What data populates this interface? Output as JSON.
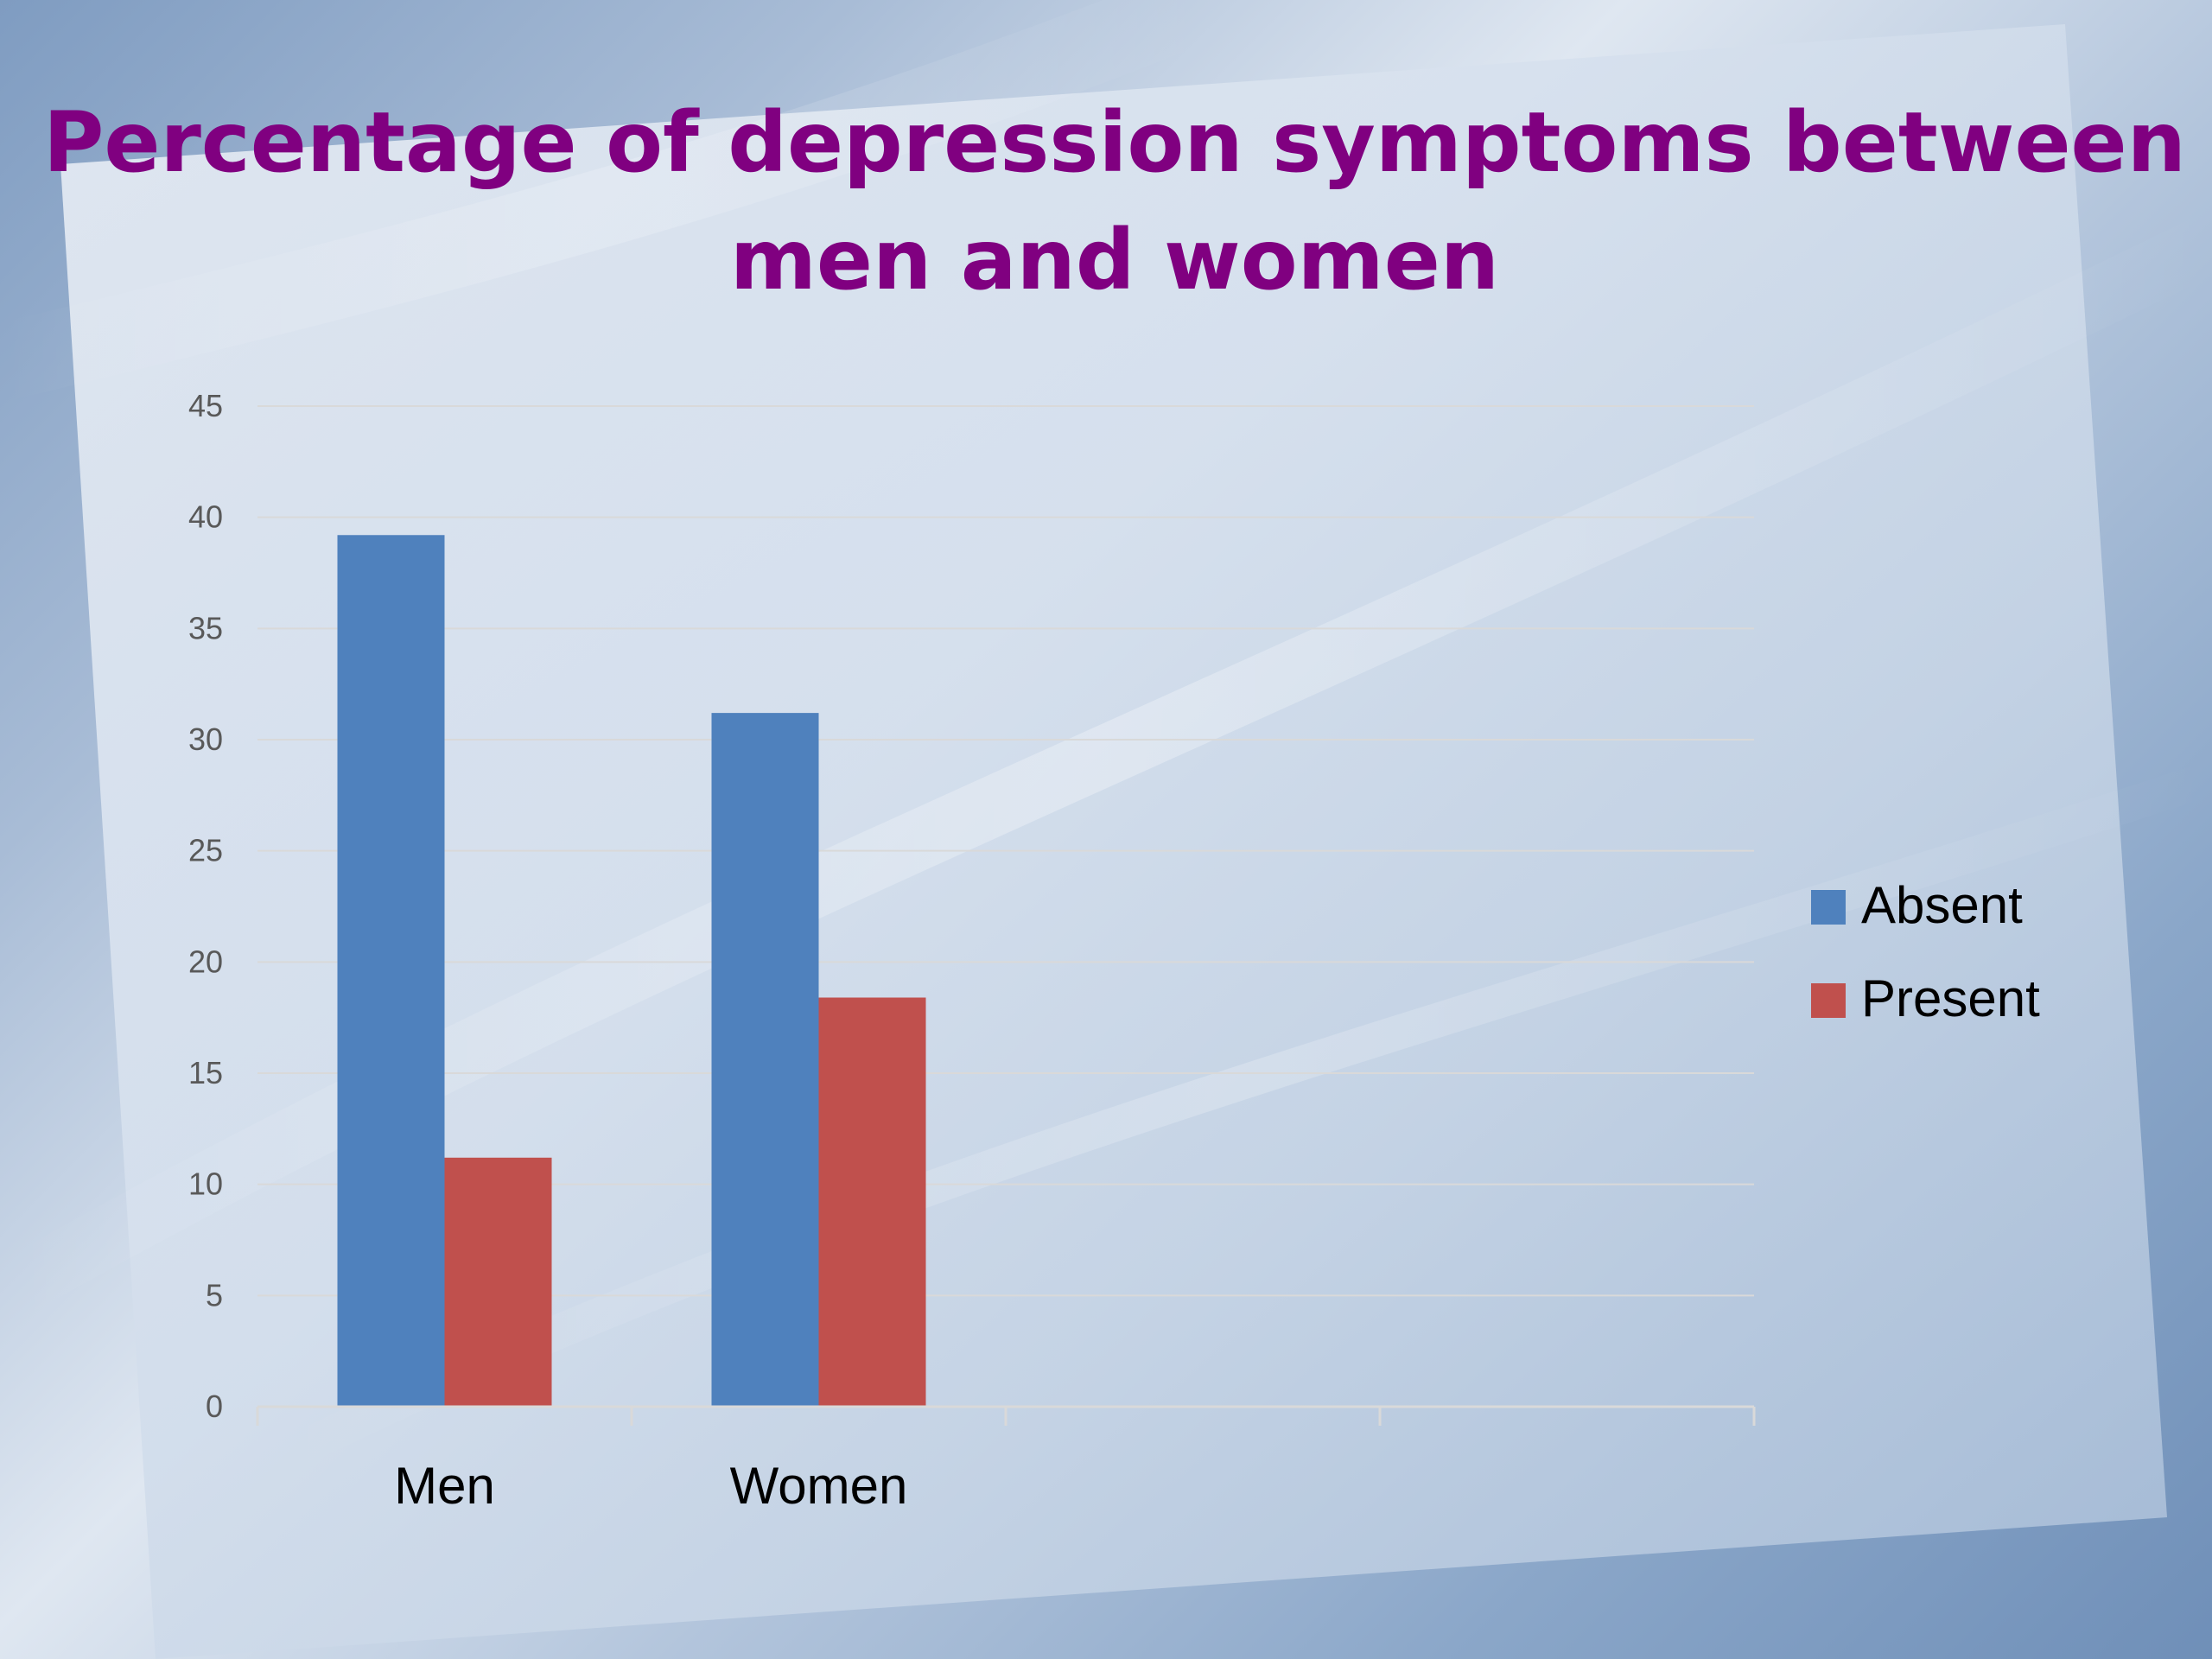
{
  "slide": {
    "title_line_1": "Percentage of depression symptoms between",
    "title_line_2": "men and women",
    "title_color": "#800080"
  },
  "chart_data": {
    "type": "bar",
    "title": "Percentage of depression symptoms between men and women",
    "categories": [
      "Men",
      "Women"
    ],
    "series": [
      {
        "name": "Absent",
        "values": [
          39.2,
          31.2
        ],
        "color": "#4F81BD"
      },
      {
        "name": "Present",
        "values": [
          11.2,
          18.4
        ],
        "color": "#C0504D"
      }
    ],
    "ylim": [
      0,
      45
    ],
    "yticks": [
      0,
      5,
      10,
      15,
      20,
      25,
      30,
      35,
      40,
      45
    ],
    "xlabel": "",
    "ylabel": "",
    "grid": true,
    "legend": "right"
  }
}
